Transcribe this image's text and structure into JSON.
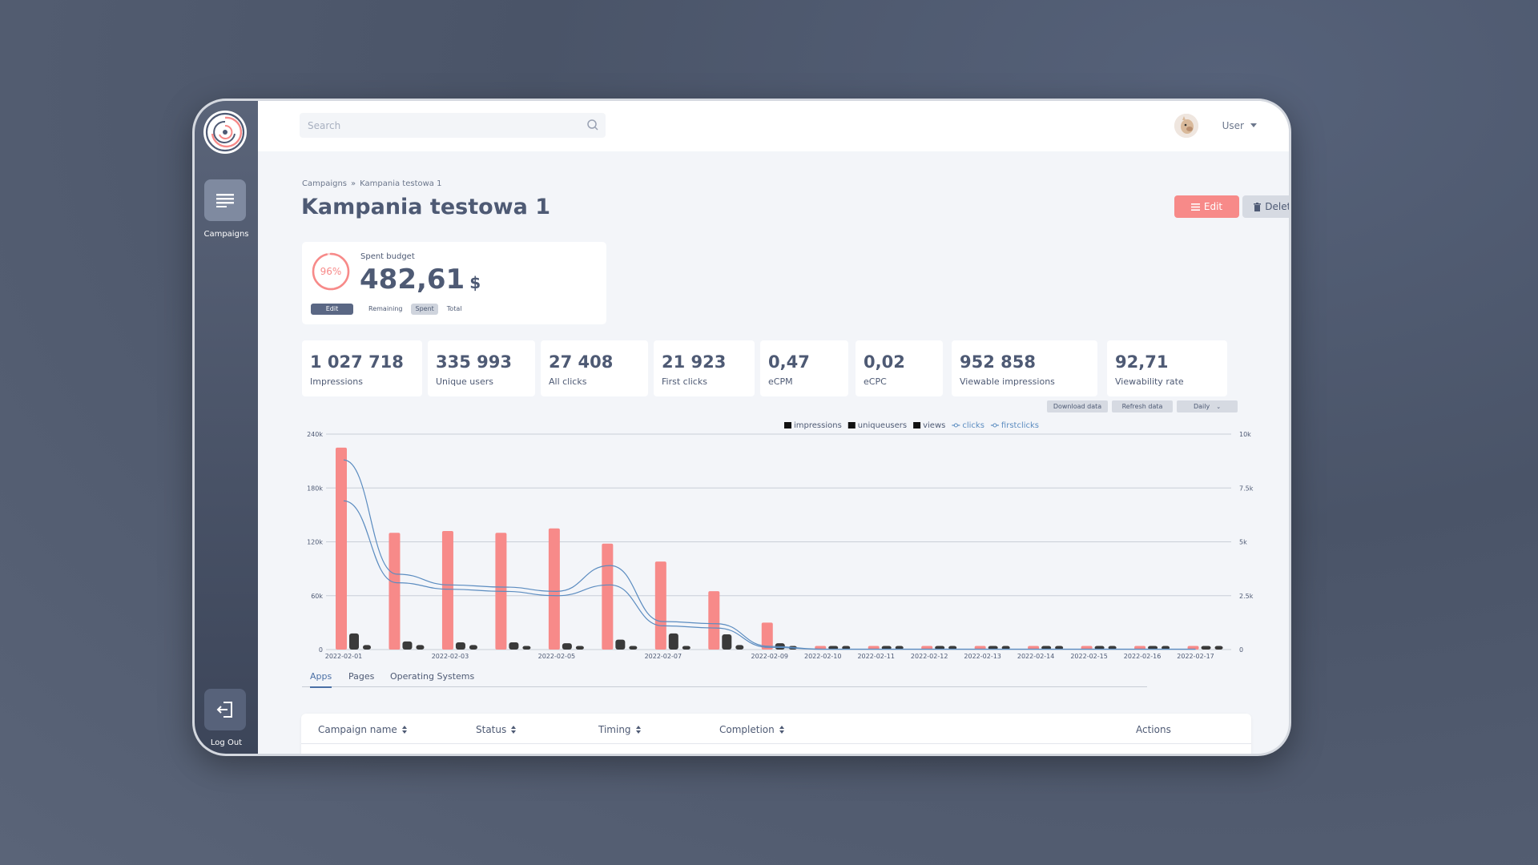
{
  "sidebar": {
    "nav_label": "Campaigns",
    "logout_label": "Log Out"
  },
  "search": {
    "placeholder": "Search"
  },
  "user": {
    "label": "User"
  },
  "breadcrumb": {
    "root": "Campaigns",
    "separator": "»",
    "current": "Kampania testowa 1"
  },
  "page": {
    "title": "Kampania testowa 1"
  },
  "actions": {
    "edit_label": "Edit",
    "delete_label": "Delete"
  },
  "budget": {
    "percent_label": "96%",
    "percent": 96,
    "label": "Spent budget",
    "value": "482,61",
    "currency": "$",
    "edit_label": "Edit",
    "toggles": [
      "Remaining",
      "Spent",
      "Total"
    ],
    "active_toggle": "Spent"
  },
  "stats": [
    {
      "value": "1 027 718",
      "label": "Impressions"
    },
    {
      "value": "335 993",
      "label": "Unique users"
    },
    {
      "value": "27 408",
      "label": "All clicks"
    },
    {
      "value": "21 923",
      "label": "First clicks"
    },
    {
      "value": "0,47",
      "label": "eCPM"
    },
    {
      "value": "0,02",
      "label": "eCPC"
    },
    {
      "value": "952 858",
      "label": "Viewable impressions"
    },
    {
      "value": "92,71",
      "label": "Viewability rate"
    }
  ],
  "chart_controls": {
    "download_label": "Download data",
    "refresh_label": "Refresh data",
    "interval_value": "Daily"
  },
  "colors": {
    "accent": "#f78a89",
    "dark_bar": "#3a3a3a",
    "line": "#5b8cc0",
    "text": "#4e5a74"
  },
  "chart_data": {
    "type": "bar",
    "categories": [
      "2022-02-01",
      "2022-02-02",
      "2022-02-03",
      "2022-02-04",
      "2022-02-05",
      "2022-02-06",
      "2022-02-07",
      "2022-02-08",
      "2022-02-09",
      "2022-02-10",
      "2022-02-11",
      "2022-02-12",
      "2022-02-13",
      "2022-02-14",
      "2022-02-15",
      "2022-02-16",
      "2022-02-17"
    ],
    "tick_labels": [
      "2022-02-01",
      "2022-02-03",
      "2022-02-05",
      "2022-02-07",
      "2022-02-09",
      "2022-02-10",
      "2022-02-11",
      "2022-02-12",
      "2022-02-13",
      "2022-02-14",
      "2022-02-15",
      "2022-02-16",
      "2022-02-17"
    ],
    "legend": [
      "impressions",
      "uniqueusers",
      "views",
      "clicks",
      "firstclicks"
    ],
    "legend_position": "top-center",
    "y_left": {
      "ticks": [
        "0",
        "60k",
        "120k",
        "180k",
        "240k"
      ],
      "range": [
        0,
        240000
      ]
    },
    "y_right": {
      "ticks": [
        "0",
        "2.5k",
        "5k",
        "7.5k",
        "10k"
      ],
      "range": [
        0,
        10000
      ]
    },
    "grid": true,
    "series": [
      {
        "name": "impressions",
        "axis": "left",
        "type": "bar",
        "values": [
          225000,
          130000,
          132000,
          130000,
          135000,
          118000,
          98000,
          65000,
          30000,
          4000,
          4000,
          4000,
          4000,
          4000,
          4000,
          4000,
          4000
        ]
      },
      {
        "name": "uniqueusers",
        "axis": "left",
        "type": "bar",
        "values": [
          18000,
          9000,
          8000,
          8000,
          7000,
          11000,
          18000,
          17000,
          7000,
          4000,
          4000,
          4000,
          4000,
          4000,
          4000,
          4000,
          4000
        ]
      },
      {
        "name": "views",
        "axis": "left",
        "type": "bar",
        "values": [
          5000,
          5000,
          5000,
          4000,
          4000,
          4000,
          4000,
          5000,
          4000,
          4000,
          4000,
          4000,
          4000,
          4000,
          4000,
          4000,
          4000
        ]
      },
      {
        "name": "clicks",
        "axis": "right",
        "type": "line",
        "values": [
          8800,
          3500,
          3000,
          2900,
          2700,
          3900,
          1300,
          1200,
          150,
          20,
          20,
          20,
          20,
          20,
          20,
          20,
          20
        ]
      },
      {
        "name": "firstclicks",
        "axis": "right",
        "type": "line",
        "values": [
          6900,
          3100,
          2800,
          2700,
          2500,
          3000,
          1100,
          1000,
          100,
          15,
          15,
          15,
          15,
          15,
          15,
          15,
          15
        ]
      }
    ]
  },
  "tabs": [
    {
      "label": "Apps",
      "active": true
    },
    {
      "label": "Pages",
      "active": false
    },
    {
      "label": "Operating Systems",
      "active": false
    }
  ],
  "table": {
    "columns": [
      "Campaign name",
      "Status",
      "Timing",
      "Completion",
      "Actions"
    ]
  }
}
